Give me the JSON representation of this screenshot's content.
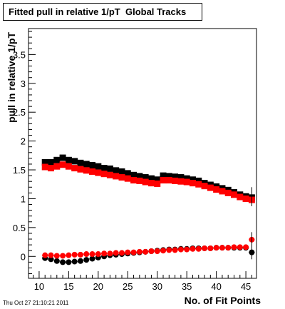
{
  "chart_data": {
    "type": "scatter",
    "title": "Fitted pull in relative 1/pT  Global Tracks",
    "xlabel": "No. of Fit Points",
    "ylabel": "pull in relative 1/pT",
    "xlim": [
      8.2,
      46.8
    ],
    "ylim": [
      -0.38,
      3.95
    ],
    "x_ticks": [
      10,
      15,
      20,
      25,
      30,
      35,
      40,
      45
    ],
    "y_ticks": [
      0,
      0.5,
      1,
      1.5,
      2,
      2.5,
      3,
      3.5
    ],
    "y_tick_labels": [
      "0",
      "0.5",
      "1",
      "1.5",
      "2",
      "2.5",
      "3",
      "3.5"
    ],
    "grid": false,
    "x": [
      11,
      12,
      13,
      14,
      15,
      16,
      17,
      18,
      19,
      20,
      21,
      22,
      23,
      24,
      25,
      26,
      27,
      28,
      29,
      30,
      31,
      32,
      33,
      34,
      35,
      36,
      37,
      38,
      39,
      40,
      41,
      42,
      43,
      44,
      45,
      46
    ],
    "series": [
      {
        "marker": "square",
        "color": "#000000",
        "values": [
          1.63,
          1.63,
          1.67,
          1.71,
          1.67,
          1.65,
          1.62,
          1.6,
          1.58,
          1.56,
          1.53,
          1.52,
          1.49,
          1.47,
          1.44,
          1.41,
          1.39,
          1.37,
          1.35,
          1.33,
          1.4,
          1.39,
          1.38,
          1.37,
          1.35,
          1.33,
          1.31,
          1.27,
          1.24,
          1.21,
          1.18,
          1.15,
          1.11,
          1.07,
          1.04,
          1.02
        ]
      },
      {
        "marker": "square",
        "color": "#ff0000",
        "values": [
          1.55,
          1.53,
          1.56,
          1.59,
          1.56,
          1.53,
          1.51,
          1.49,
          1.47,
          1.45,
          1.43,
          1.41,
          1.39,
          1.37,
          1.35,
          1.32,
          1.31,
          1.29,
          1.27,
          1.26,
          1.32,
          1.32,
          1.31,
          1.3,
          1.29,
          1.27,
          1.25,
          1.22,
          1.19,
          1.16,
          1.13,
          1.1,
          1.07,
          1.03,
          1.0,
          0.98
        ]
      },
      {
        "marker": "circle",
        "color": "#000000",
        "values": [
          -0.03,
          -0.05,
          -0.08,
          -0.1,
          -0.1,
          -0.09,
          -0.08,
          -0.06,
          -0.04,
          -0.02,
          0.0,
          0.02,
          0.03,
          0.04,
          0.05,
          0.06,
          0.07,
          0.08,
          0.09,
          0.1,
          0.11,
          0.12,
          0.12,
          0.13,
          0.13,
          0.14,
          0.14,
          0.14,
          0.14,
          0.15,
          0.15,
          0.15,
          0.15,
          0.15,
          0.15,
          0.07
        ]
      },
      {
        "marker": "circle",
        "color": "#ff0000",
        "values": [
          0.02,
          0.02,
          0.01,
          0.01,
          0.02,
          0.03,
          0.03,
          0.04,
          0.04,
          0.04,
          0.05,
          0.05,
          0.06,
          0.06,
          0.07,
          0.07,
          0.08,
          0.08,
          0.09,
          0.09,
          0.1,
          0.11,
          0.11,
          0.12,
          0.12,
          0.13,
          0.13,
          0.14,
          0.14,
          0.15,
          0.15,
          0.15,
          0.16,
          0.16,
          0.16,
          0.29
        ]
      }
    ]
  },
  "timestamp": "Thu Oct 27 21:10:21 2011"
}
